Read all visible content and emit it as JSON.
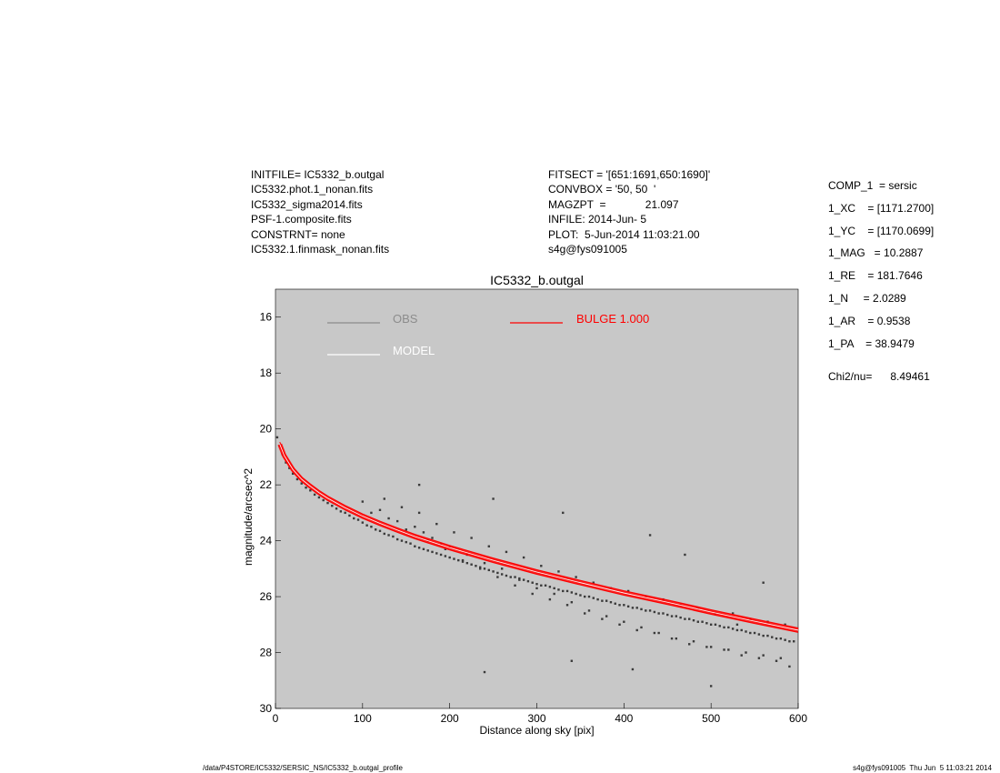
{
  "header_left": [
    "INITFILE= IC5332_b.outgal",
    "IC5332.phot.1_nonan.fits",
    "IC5332_sigma2014.fits",
    "PSF-1.composite.fits",
    "CONSTRNT= none",
    "IC5332.1.finmask_nonan.fits"
  ],
  "header_mid": [
    "FITSECT = '[651:1691,650:1690]'",
    "CONVBOX = '50, 50  '",
    "MAGZPT  =             21.097",
    "INFILE: 2014-Jun- 5",
    "PLOT:  5-Jun-2014 11:03:21.00",
    "s4g@fys091005"
  ],
  "header_right": [
    "COMP_1  = sersic",
    "1_XC    = [1171.2700]",
    "1_YC    = [1170.0699]",
    "1_MAG   = 10.2887",
    "1_RE    = 181.7646",
    "1_N     = 2.0289",
    "1_AR    = 0.9538",
    "1_PA    = 38.9479"
  ],
  "chi2_text": "Chi2/nu=      8.49461",
  "footer": {
    "left": "/data/P4STORE/IC5332/SERSIC_NS/IC5332_b.outgal_profile",
    "right": "s4g@fys091005  Thu Jun  5 11:03:21 2014"
  },
  "colors": {
    "plot_bg": "#c8c8c8",
    "obs_points": "#3a3a3a",
    "obs_legend": "#8c8c8c",
    "model": "#ffffff",
    "bulge": "#ff0000"
  },
  "chart_data": {
    "type": "scatter",
    "title": "IC5332_b.outgal",
    "xlabel": "Distance along sky [pix]",
    "ylabel": "magnitude/arcsec^2",
    "xlim": [
      0,
      600
    ],
    "ylim": [
      30,
      15
    ],
    "x_ticks": [
      0,
      100,
      200,
      300,
      400,
      500,
      600
    ],
    "y_ticks": [
      16,
      18,
      20,
      22,
      24,
      26,
      28,
      30
    ],
    "legend": [
      {
        "label": "OBS",
        "color": "#8c8c8c"
      },
      {
        "label": "MODEL",
        "color": "#ffffff"
      },
      {
        "label": "BULGE  1.000",
        "color": "#ff0000"
      }
    ],
    "series": [
      {
        "name": "OBS",
        "kind": "scatter",
        "x": [
          2,
          5,
          8,
          12,
          16,
          20,
          25,
          30,
          35,
          40,
          45,
          50,
          55,
          60,
          65,
          70,
          75,
          80,
          85,
          90,
          95,
          100,
          105,
          110,
          115,
          120,
          125,
          130,
          135,
          140,
          145,
          150,
          155,
          160,
          165,
          170,
          175,
          180,
          185,
          190,
          195,
          200,
          205,
          210,
          215,
          220,
          225,
          230,
          235,
          240,
          245,
          250,
          255,
          260,
          265,
          270,
          275,
          280,
          285,
          290,
          295,
          300,
          305,
          310,
          315,
          320,
          325,
          330,
          335,
          340,
          345,
          350,
          355,
          360,
          365,
          370,
          375,
          380,
          385,
          390,
          395,
          400,
          405,
          410,
          415,
          420,
          425,
          430,
          435,
          440,
          445,
          450,
          455,
          460,
          465,
          470,
          475,
          480,
          485,
          490,
          495,
          500,
          505,
          510,
          515,
          520,
          525,
          530,
          535,
          540,
          545,
          550,
          555,
          560,
          565,
          570,
          575,
          580,
          585,
          590,
          595,
          100,
          120,
          140,
          160,
          170,
          180,
          190,
          200,
          220,
          240,
          260,
          280,
          300,
          320,
          340,
          360,
          380,
          400,
          420,
          440,
          460,
          480,
          500,
          520,
          540,
          560,
          580,
          110,
          130,
          150,
          175,
          195,
          215,
          235,
          255,
          275,
          295,
          315,
          335,
          355,
          375,
          395,
          415,
          435,
          455,
          475,
          495,
          515,
          535,
          555,
          575,
          590,
          125,
          145,
          165,
          185,
          205,
          225,
          245,
          265,
          285,
          305,
          325,
          345,
          365,
          385,
          405,
          425,
          445,
          465,
          485,
          505,
          525,
          545,
          565,
          585,
          165,
          250,
          330,
          430,
          470,
          530,
          560,
          240,
          340,
          410,
          500
        ],
        "y": [
          20.3,
          20.6,
          20.9,
          21.2,
          21.4,
          21.6,
          21.8,
          21.95,
          22.1,
          22.2,
          22.35,
          22.45,
          22.55,
          22.65,
          22.75,
          22.85,
          22.95,
          23.0,
          23.1,
          23.2,
          23.25,
          23.35,
          23.45,
          23.5,
          23.6,
          23.65,
          23.75,
          23.8,
          23.85,
          23.95,
          24.0,
          24.05,
          24.1,
          24.2,
          24.25,
          24.3,
          24.35,
          24.4,
          24.45,
          24.5,
          24.55,
          24.6,
          24.65,
          24.7,
          24.75,
          24.8,
          24.85,
          24.9,
          24.95,
          25.0,
          25.05,
          25.1,
          25.15,
          25.2,
          25.25,
          25.3,
          25.3,
          25.35,
          25.4,
          25.45,
          25.5,
          25.55,
          25.6,
          25.6,
          25.65,
          25.7,
          25.75,
          25.8,
          25.8,
          25.85,
          25.9,
          25.95,
          26.0,
          26.0,
          26.05,
          26.1,
          26.15,
          26.15,
          26.2,
          26.25,
          26.3,
          26.3,
          26.35,
          26.4,
          26.4,
          26.45,
          26.5,
          26.5,
          26.55,
          26.6,
          26.6,
          26.65,
          26.7,
          26.7,
          26.75,
          26.8,
          26.8,
          26.85,
          26.9,
          26.9,
          26.95,
          27.0,
          27.0,
          27.05,
          27.1,
          27.1,
          27.15,
          27.2,
          27.2,
          27.25,
          27.3,
          27.3,
          27.35,
          27.4,
          27.4,
          27.45,
          27.5,
          27.5,
          27.55,
          27.6,
          27.6,
          22.6,
          22.9,
          23.3,
          23.5,
          23.7,
          23.9,
          24.1,
          24.2,
          24.5,
          24.8,
          25.0,
          25.4,
          25.7,
          25.9,
          26.2,
          26.5,
          26.7,
          26.9,
          27.1,
          27.3,
          27.5,
          27.6,
          27.8,
          27.9,
          28.0,
          28.1,
          28.2,
          23.0,
          23.2,
          23.6,
          24.0,
          24.3,
          24.7,
          25.0,
          25.3,
          25.6,
          25.9,
          26.1,
          26.3,
          26.6,
          26.8,
          27.0,
          27.2,
          27.3,
          27.5,
          27.7,
          27.8,
          27.9,
          28.1,
          28.2,
          28.3,
          28.5,
          22.5,
          22.8,
          23.0,
          23.4,
          23.7,
          23.9,
          24.2,
          24.4,
          24.6,
          24.9,
          25.1,
          25.3,
          25.5,
          25.7,
          25.8,
          26.0,
          26.1,
          26.3,
          26.4,
          26.6,
          26.6,
          26.8,
          26.9,
          27.0,
          22.0,
          22.5,
          23.0,
          23.8,
          24.5,
          27.0,
          25.5,
          28.7,
          28.3,
          28.6,
          29.2
        ]
      },
      {
        "name": "BULGE  1.000",
        "kind": "line",
        "x": [
          5,
          10,
          20,
          30,
          40,
          50,
          60,
          80,
          100,
          120,
          140,
          160,
          180,
          200,
          250,
          300,
          350,
          400,
          450,
          500,
          550,
          600
        ],
        "y": [
          20.55,
          20.95,
          21.45,
          21.8,
          22.05,
          22.28,
          22.48,
          22.82,
          23.12,
          23.38,
          23.62,
          23.85,
          24.05,
          24.25,
          24.7,
          25.12,
          25.5,
          25.87,
          26.2,
          26.55,
          26.88,
          27.2
        ]
      },
      {
        "name": "MODEL",
        "kind": "line",
        "x": [
          5,
          10,
          20,
          30,
          40,
          50,
          60,
          80,
          100,
          120,
          140,
          160,
          180,
          200,
          250,
          300,
          350,
          400,
          450,
          500,
          550,
          600
        ],
        "y": [
          20.55,
          20.95,
          21.45,
          21.8,
          22.05,
          22.28,
          22.48,
          22.82,
          23.12,
          23.38,
          23.62,
          23.85,
          24.05,
          24.25,
          24.7,
          25.12,
          25.5,
          25.87,
          26.2,
          26.55,
          26.88,
          27.2
        ]
      }
    ]
  }
}
